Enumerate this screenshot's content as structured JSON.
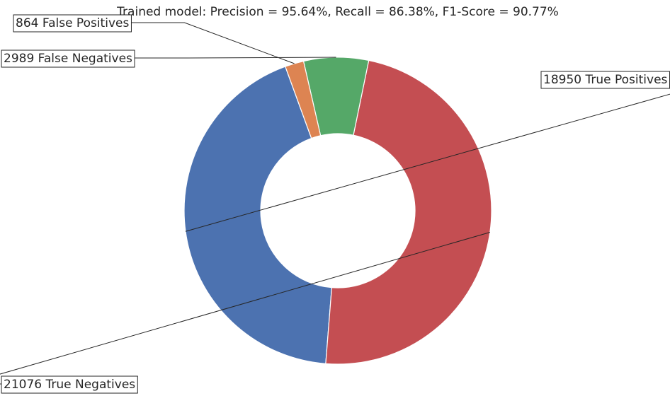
{
  "chart_data": {
    "type": "pie",
    "donut": true,
    "title": "Trained model: Precision = 95.64%, Recall = 86.38%, F1-Score = 90.77%",
    "slices": [
      {
        "label": "18950 True Positives",
        "value": 18950,
        "color": "#4c72b0"
      },
      {
        "label": "21076 True Negatives",
        "value": 21076,
        "color": "#c44e52"
      },
      {
        "label": "2989 False Negatives",
        "value": 2989,
        "color": "#55a868"
      },
      {
        "label": "864 False Positives",
        "value": 864,
        "color": "#dd8452"
      }
    ]
  }
}
